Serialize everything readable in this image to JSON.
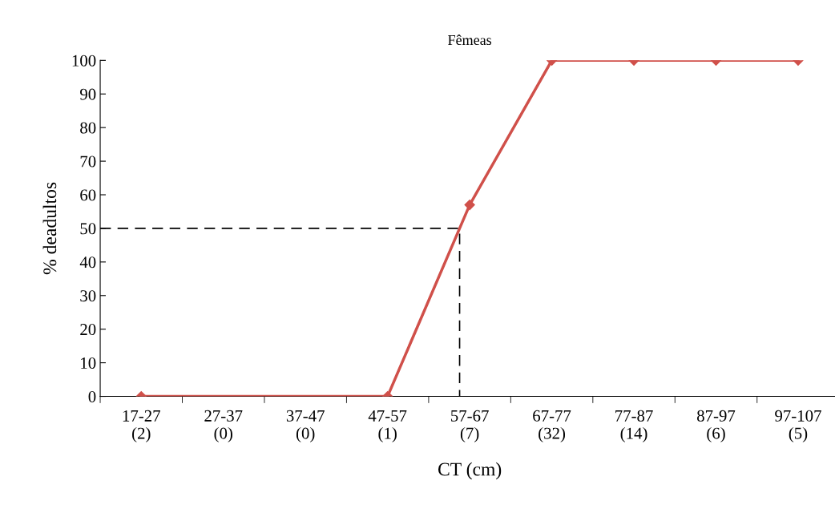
{
  "chart_data": {
    "type": "line",
    "title": "Fêmeas",
    "xlabel": "CT (cm)",
    "ylabel": "% deadultos",
    "categories": [
      "17-27\n(2)",
      "27-37\n(0)",
      "37-47\n(0)",
      "47-57\n(1)",
      "57-67\n(7)",
      "67-77\n(32)",
      "77-87\n(14)",
      "87-97\n(6)",
      "97-107\n(5)"
    ],
    "series": [
      {
        "color": "#d0504a",
        "values": [
          0,
          null,
          null,
          0,
          57,
          100,
          100,
          100,
          100
        ]
      }
    ],
    "ylim": [
      0,
      100
    ],
    "yticks": [
      0,
      10,
      20,
      30,
      40,
      50,
      60,
      70,
      80,
      90,
      100
    ],
    "marker": "diamond",
    "line_style": "solid",
    "grid": false,
    "legend": false,
    "ref_lines": [
      {
        "axis": "y",
        "value": 50,
        "color": "#000000",
        "line_style": "dashed"
      }
    ]
  }
}
